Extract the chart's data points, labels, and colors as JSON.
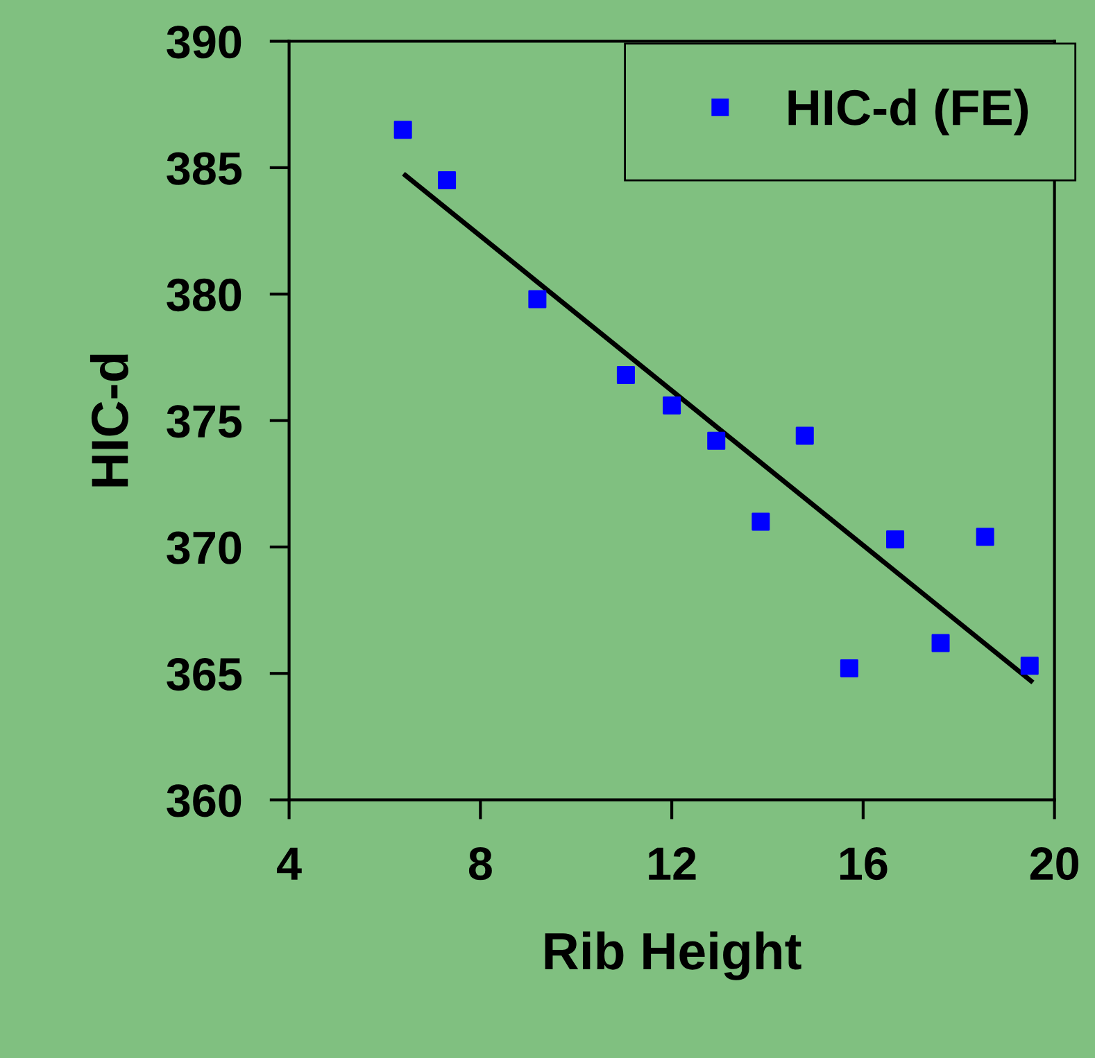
{
  "chart_data": {
    "type": "scatter",
    "xlabel": "Rib Height",
    "ylabel": "HIC-d",
    "xlim": [
      4,
      20
    ],
    "xticks": [
      4,
      8,
      12,
      16,
      20
    ],
    "ylim": [
      360,
      390
    ],
    "yticks": [
      360,
      365,
      370,
      375,
      380,
      385,
      390
    ],
    "grid": false,
    "legend": "top right",
    "series": [
      {
        "name": "HIC-d (FE)",
        "color": "#0000ff",
        "marker": "square",
        "x": [
          6.38,
          7.3,
          9.19,
          11.04,
          12.0,
          12.93,
          13.86,
          14.78,
          15.71,
          16.67,
          17.62,
          18.55,
          19.48
        ],
        "values": [
          386.5,
          384.5,
          379.8,
          376.8,
          375.6,
          374.2,
          371.0,
          374.4,
          365.2,
          370.3,
          366.2,
          370.4,
          365.3
        ]
      },
      {
        "type": "line",
        "color": "#000000",
        "x": [
          6.43,
          19.51
        ],
        "values": [
          384.7,
          364.7
        ]
      }
    ]
  }
}
